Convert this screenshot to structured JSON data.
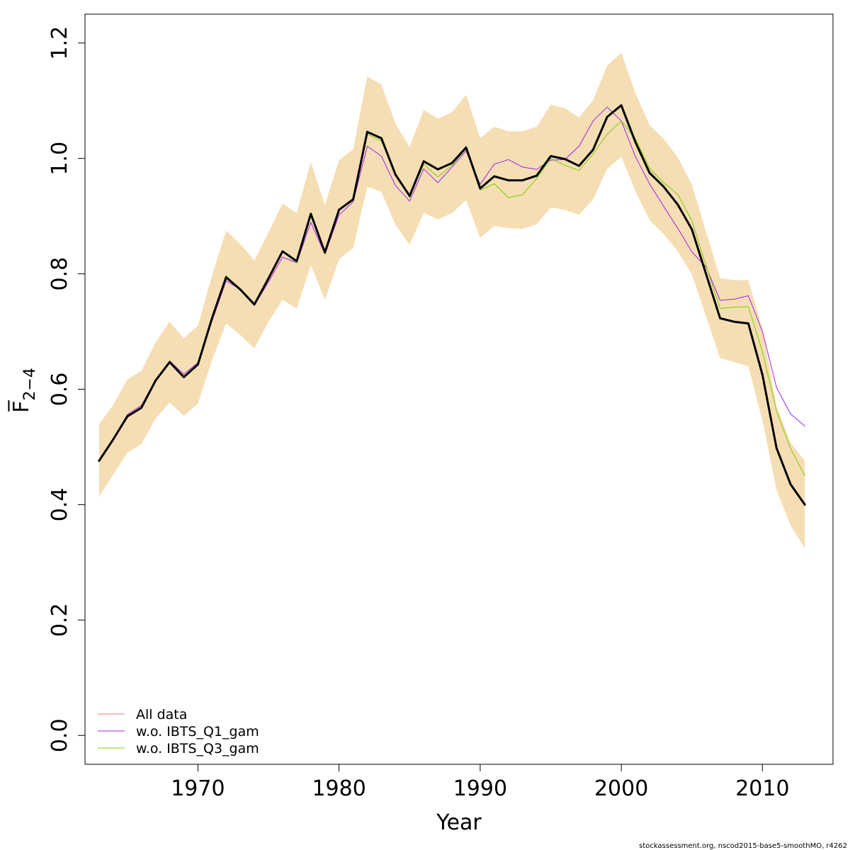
{
  "chart_data": {
    "type": "line",
    "xlabel": "Year",
    "ylabel": "F̅",
    "ylabel_subscript": "2−4",
    "xlim": [
      1962,
      2015
    ],
    "ylim": [
      -0.05,
      1.25
    ],
    "x_ticks": [
      1970,
      1980,
      1990,
      2000,
      2010
    ],
    "y_ticks": [
      0.0,
      0.2,
      0.4,
      0.6,
      0.8,
      1.0,
      1.2
    ],
    "y_tick_labels": [
      "0.0",
      "0.2",
      "0.4",
      "0.6",
      "0.8",
      "1.0",
      "1.2"
    ],
    "x": [
      1963,
      1964,
      1965,
      1966,
      1967,
      1968,
      1969,
      1970,
      1971,
      1972,
      1973,
      1974,
      1975,
      1976,
      1977,
      1978,
      1979,
      1980,
      1981,
      1982,
      1983,
      1984,
      1985,
      1986,
      1987,
      1988,
      1989,
      1990,
      1991,
      1992,
      1993,
      1994,
      1995,
      1996,
      1997,
      1998,
      1999,
      2000,
      2001,
      2002,
      2003,
      2004,
      2005,
      2006,
      2007,
      2008,
      2009,
      2010,
      2011,
      2012,
      2013
    ],
    "confidence_band": {
      "color": "#f5deb3",
      "lower": [
        0.414,
        0.452,
        0.49,
        0.505,
        0.549,
        0.577,
        0.554,
        0.575,
        0.65,
        0.714,
        0.694,
        0.671,
        0.717,
        0.755,
        0.74,
        0.815,
        0.755,
        0.825,
        0.845,
        0.951,
        0.942,
        0.885,
        0.85,
        0.906,
        0.894,
        0.905,
        0.928,
        0.862,
        0.883,
        0.879,
        0.878,
        0.886,
        0.915,
        0.911,
        0.902,
        0.929,
        0.982,
        1.003,
        0.943,
        0.893,
        0.869,
        0.839,
        0.799,
        0.726,
        0.654,
        0.647,
        0.64,
        0.546,
        0.425,
        0.364,
        0.324
      ],
      "upper": [
        0.539,
        0.573,
        0.617,
        0.632,
        0.681,
        0.717,
        0.688,
        0.71,
        0.797,
        0.875,
        0.852,
        0.823,
        0.872,
        0.922,
        0.905,
        0.994,
        0.919,
        0.997,
        1.016,
        1.142,
        1.128,
        1.06,
        1.02,
        1.084,
        1.069,
        1.08,
        1.11,
        1.035,
        1.055,
        1.047,
        1.047,
        1.055,
        1.093,
        1.087,
        1.071,
        1.101,
        1.161,
        1.183,
        1.113,
        1.058,
        1.034,
        1.002,
        0.955,
        0.873,
        0.793,
        0.789,
        0.789,
        0.704,
        0.571,
        0.507,
        0.476
      ]
    },
    "series": [
      {
        "name": "All data",
        "color": "#e8777a",
        "width": 1,
        "values": [
          0.476,
          0.513,
          0.553,
          0.568,
          0.615,
          0.647,
          0.621,
          0.643,
          0.723,
          0.794,
          0.773,
          0.747,
          0.792,
          0.839,
          0.822,
          0.904,
          0.837,
          0.911,
          0.929,
          1.046,
          1.035,
          0.972,
          0.935,
          0.995,
          0.981,
          0.992,
          1.019,
          0.948,
          0.969,
          0.962,
          0.962,
          0.97,
          1.004,
          0.999,
          0.987,
          1.015,
          1.072,
          1.092,
          1.028,
          0.975,
          0.951,
          0.92,
          0.877,
          0.8,
          0.723,
          0.717,
          0.714,
          0.625,
          0.498,
          0.435,
          0.4
        ]
      },
      {
        "name": "w.o. IBTS_Q1_gam",
        "color": "#a020f0",
        "width": 1,
        "values": [
          0.476,
          0.513,
          0.556,
          0.572,
          0.616,
          0.649,
          0.626,
          0.646,
          0.718,
          0.788,
          0.773,
          0.745,
          0.786,
          0.829,
          0.819,
          0.889,
          0.834,
          0.902,
          0.925,
          1.021,
          1.004,
          0.953,
          0.926,
          0.982,
          0.958,
          0.985,
          1.013,
          0.955,
          0.99,
          0.998,
          0.985,
          0.981,
          0.997,
          0.998,
          1.021,
          1.065,
          1.089,
          1.065,
          1.003,
          0.956,
          0.917,
          0.879,
          0.838,
          0.812,
          0.754,
          0.756,
          0.762,
          0.7,
          0.603,
          0.557,
          0.536
        ]
      },
      {
        "name": "w.o. IBTS_Q3_gam",
        "color": "#7ccd00",
        "width": 1,
        "values": [
          0.476,
          0.512,
          0.553,
          0.568,
          0.616,
          0.648,
          0.622,
          0.642,
          0.724,
          0.797,
          0.771,
          0.745,
          0.792,
          0.838,
          0.819,
          0.906,
          0.834,
          0.912,
          0.931,
          1.042,
          1.03,
          0.975,
          0.932,
          0.99,
          0.968,
          0.988,
          1.016,
          0.945,
          0.956,
          0.932,
          0.937,
          0.965,
          1.0,
          0.988,
          0.979,
          1.008,
          1.042,
          1.065,
          1.034,
          0.983,
          0.958,
          0.938,
          0.892,
          0.814,
          0.74,
          0.742,
          0.743,
          0.665,
          0.562,
          0.497,
          0.45
        ]
      },
      {
        "name": "",
        "color": "#000000",
        "width": 3,
        "values": [
          0.476,
          0.513,
          0.553,
          0.568,
          0.615,
          0.647,
          0.621,
          0.643,
          0.723,
          0.794,
          0.773,
          0.747,
          0.792,
          0.839,
          0.822,
          0.904,
          0.837,
          0.911,
          0.929,
          1.046,
          1.035,
          0.972,
          0.935,
          0.995,
          0.981,
          0.992,
          1.019,
          0.948,
          0.969,
          0.962,
          0.962,
          0.97,
          1.004,
          0.999,
          0.987,
          1.015,
          1.072,
          1.092,
          1.028,
          0.975,
          0.951,
          0.92,
          0.877,
          0.8,
          0.723,
          0.717,
          0.714,
          0.625,
          0.498,
          0.435,
          0.4
        ]
      }
    ],
    "legend": {
      "placement": "bottom-left",
      "entries": [
        {
          "label": "All data",
          "color": "#e8777a"
        },
        {
          "label": "w.o. IBTS_Q1_gam",
          "color": "#a020f0"
        },
        {
          "label": "w.o. IBTS_Q3_gam",
          "color": "#7ccd00"
        }
      ]
    },
    "grid": false
  },
  "footer": "stockassessment.org, nscod2015-base5-smoothMO, r4262"
}
